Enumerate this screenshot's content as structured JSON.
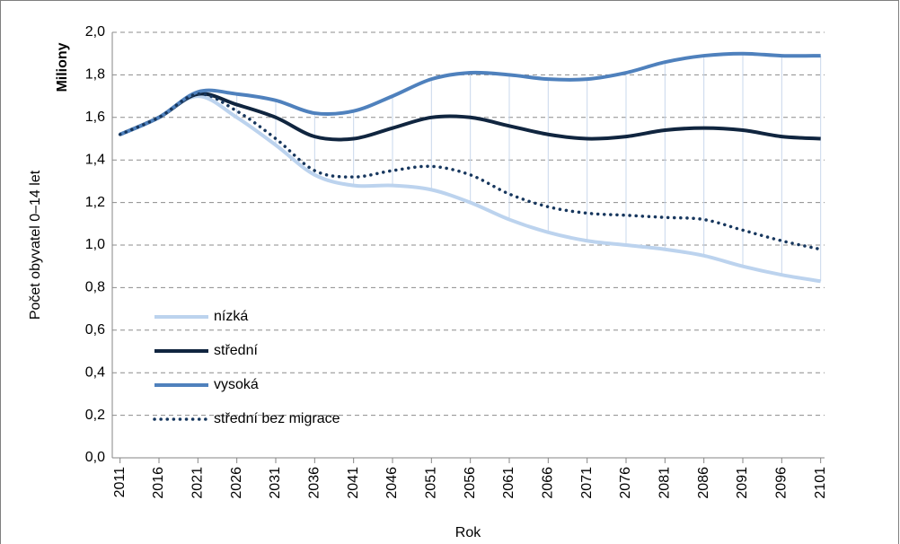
{
  "chart_data": {
    "type": "line",
    "y_label": "Počet obyvatel 0–14 let",
    "y_unit": "Miliony",
    "x_label": "Rok",
    "x": [
      2011,
      2016,
      2021,
      2026,
      2031,
      2036,
      2041,
      2046,
      2051,
      2056,
      2061,
      2066,
      2071,
      2076,
      2081,
      2086,
      2091,
      2096,
      2101
    ],
    "series": [
      {
        "name": "nízká",
        "color": "#bcd3ee",
        "style": "solid",
        "values": [
          1.52,
          1.6,
          1.7,
          1.6,
          1.47,
          1.33,
          1.28,
          1.28,
          1.26,
          1.2,
          1.12,
          1.06,
          1.02,
          1.0,
          0.98,
          0.95,
          0.9,
          0.86,
          0.83
        ]
      },
      {
        "name": "střední",
        "color": "#10253f",
        "style": "solid",
        "values": [
          1.52,
          1.6,
          1.71,
          1.66,
          1.6,
          1.51,
          1.5,
          1.55,
          1.6,
          1.6,
          1.56,
          1.52,
          1.5,
          1.51,
          1.54,
          1.55,
          1.54,
          1.51,
          1.5
        ]
      },
      {
        "name": "vysoká",
        "color": "#4f81bd",
        "style": "solid",
        "values": [
          1.52,
          1.6,
          1.72,
          1.71,
          1.68,
          1.62,
          1.63,
          1.7,
          1.78,
          1.81,
          1.8,
          1.78,
          1.78,
          1.81,
          1.86,
          1.89,
          1.9,
          1.89,
          1.89
        ]
      },
      {
        "name": "střední bez migrace",
        "color": "#17375e",
        "style": "dotted",
        "values": [
          1.52,
          1.6,
          1.71,
          1.63,
          1.5,
          1.35,
          1.32,
          1.35,
          1.37,
          1.33,
          1.24,
          1.18,
          1.15,
          1.14,
          1.13,
          1.12,
          1.07,
          1.02,
          0.98
        ]
      }
    ],
    "high_low_lines": true,
    "xlim": [
      2010,
      2101.5
    ],
    "xticks": [
      2011,
      2016,
      2021,
      2026,
      2031,
      2036,
      2041,
      2046,
      2051,
      2056,
      2061,
      2066,
      2071,
      2076,
      2081,
      2086,
      2091,
      2096,
      2101
    ],
    "ylim": [
      0,
      2
    ],
    "yticks": [
      {
        "value": 0,
        "label": "0,0"
      },
      {
        "value": 0.2,
        "label": "0,2"
      },
      {
        "value": 0.4,
        "label": "0,4"
      },
      {
        "value": 0.6,
        "label": "0,6"
      },
      {
        "value": 0.8,
        "label": "0,8"
      },
      {
        "value": 1,
        "label": "1,0"
      },
      {
        "value": 1.2,
        "label": "1,2"
      },
      {
        "value": 1.4,
        "label": "1,4"
      },
      {
        "value": 1.6,
        "label": "1,6"
      },
      {
        "value": 1.8,
        "label": "1,8"
      },
      {
        "value": 2,
        "label": "2,0"
      }
    ],
    "grid": true,
    "legend": "lower left"
  }
}
